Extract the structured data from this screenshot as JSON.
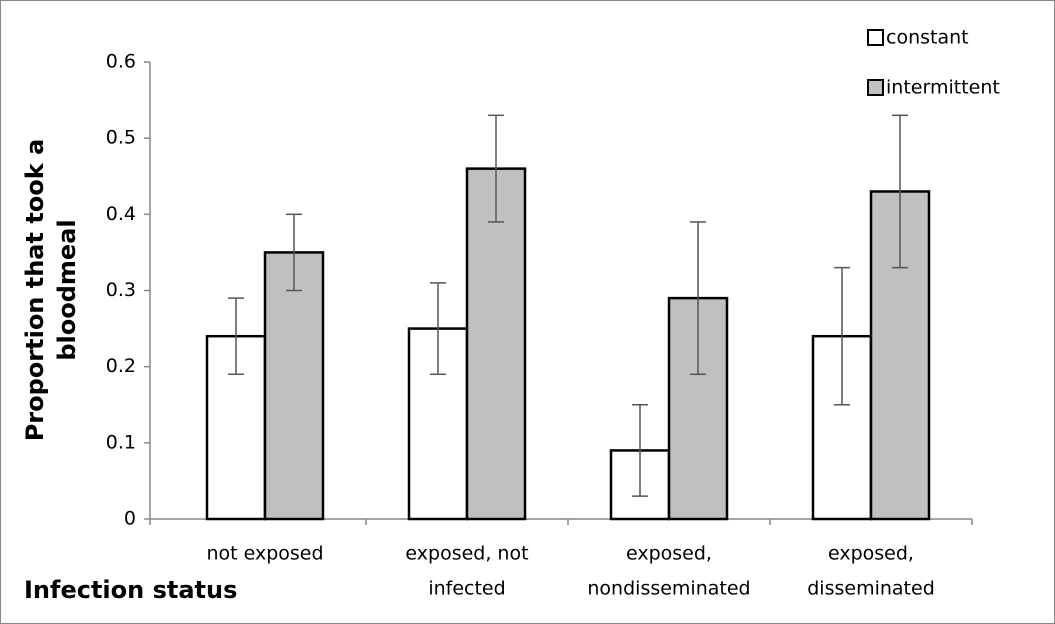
{
  "chart_data": {
    "type": "bar",
    "y_label": [
      "Proportion that took a",
      "bloodmeal"
    ],
    "x_label": "Infection status",
    "categories": [
      [
        "not exposed"
      ],
      [
        "exposed, not",
        "infected"
      ],
      [
        "exposed,",
        "nondisseminated"
      ],
      [
        "exposed,",
        "disseminated"
      ]
    ],
    "series": [
      {
        "name": "constant",
        "color": "#ffffff",
        "values": [
          0.24,
          0.25,
          0.09,
          0.24
        ],
        "errors": [
          0.05,
          0.06,
          0.06,
          0.09
        ]
      },
      {
        "name": "intermittent",
        "color": "#c0c0c0",
        "values": [
          0.35,
          0.46,
          0.29,
          0.43
        ],
        "errors": [
          0.05,
          0.07,
          0.1,
          0.1
        ]
      }
    ],
    "ylim": [
      0,
      0.6
    ],
    "yticks": [
      0,
      0.1,
      0.2,
      0.3,
      0.4,
      0.5,
      0.6
    ],
    "grid": false,
    "legend": "top-right"
  }
}
